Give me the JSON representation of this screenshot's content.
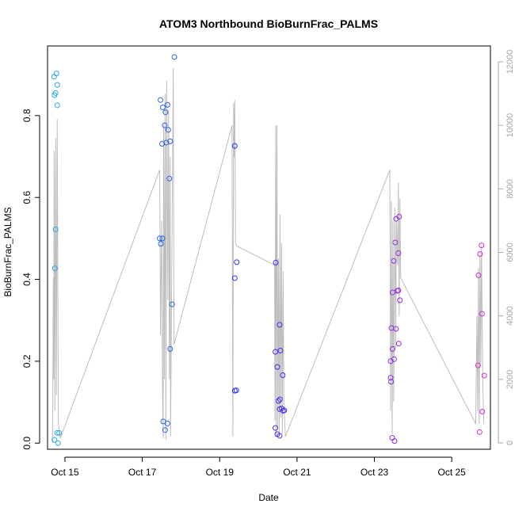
{
  "chart_data": {
    "type": "scatter",
    "title": "ATOM3 Northbound BioBurnFrac_PALMS",
    "xlabel": "Date",
    "ylabel": "BioBurnFrac_PALMS",
    "x_unit": "day of October 2017",
    "xlim": [
      14.55,
      26.0
    ],
    "ylim": [
      -0.015,
      0.97
    ],
    "y2lim": [
      -200,
      12500
    ],
    "x_ticks": [
      {
        "value": 15,
        "label": "Oct 15"
      },
      {
        "value": 17,
        "label": "Oct 17"
      },
      {
        "value": 19,
        "label": "Oct 19"
      },
      {
        "value": 21,
        "label": "Oct 21"
      },
      {
        "value": 23,
        "label": "Oct 23"
      },
      {
        "value": 25,
        "label": "Oct 25"
      }
    ],
    "y_ticks": [
      {
        "value": 0.0,
        "label": "0.0"
      },
      {
        "value": 0.2,
        "label": "0.2"
      },
      {
        "value": 0.4,
        "label": "0.4"
      },
      {
        "value": 0.6,
        "label": "0.6"
      },
      {
        "value": 0.8,
        "label": "0.8"
      }
    ],
    "y2_ticks": [
      {
        "value": 0,
        "label": "0"
      },
      {
        "value": 2000,
        "label": "2000"
      },
      {
        "value": 4000,
        "label": "4000"
      },
      {
        "value": 6000,
        "label": "6000"
      },
      {
        "value": 8000,
        "label": "8000"
      },
      {
        "value": 10000,
        "label": "10000"
      },
      {
        "value": 12000,
        "label": "12000"
      }
    ],
    "colors": {
      "altitude_line": "#bdbdbd",
      "axis": "#000000",
      "y2_axis": "#a6a6a6",
      "point_start": "#29a9e6",
      "point_mid": "#2a2ef0",
      "point_end": "#d62ad6"
    },
    "series": [
      {
        "role": "points",
        "points": [
          {
            "x": 14.72,
            "y": 0.895
          },
          {
            "x": 14.78,
            "y": 0.903
          },
          {
            "x": 14.76,
            "y": 0.855
          },
          {
            "x": 14.73,
            "y": 0.85
          },
          {
            "x": 14.8,
            "y": 0.875
          },
          {
            "x": 14.8,
            "y": 0.825
          },
          {
            "x": 14.76,
            "y": 0.522
          },
          {
            "x": 14.74,
            "y": 0.427
          },
          {
            "x": 14.8,
            "y": 0.025
          },
          {
            "x": 14.85,
            "y": 0.025
          },
          {
            "x": 14.73,
            "y": 0.008
          },
          {
            "x": 14.82,
            "y": 0.0
          },
          {
            "x": 17.47,
            "y": 0.838
          },
          {
            "x": 17.53,
            "y": 0.82
          },
          {
            "x": 17.65,
            "y": 0.826
          },
          {
            "x": 17.6,
            "y": 0.808
          },
          {
            "x": 17.58,
            "y": 0.776
          },
          {
            "x": 17.67,
            "y": 0.765
          },
          {
            "x": 17.72,
            "y": 0.737
          },
          {
            "x": 17.62,
            "y": 0.734
          },
          {
            "x": 17.51,
            "y": 0.731
          },
          {
            "x": 17.83,
            "y": 0.943
          },
          {
            "x": 17.7,
            "y": 0.646
          },
          {
            "x": 17.45,
            "y": 0.5
          },
          {
            "x": 17.52,
            "y": 0.5
          },
          {
            "x": 17.48,
            "y": 0.487
          },
          {
            "x": 17.77,
            "y": 0.339
          },
          {
            "x": 17.72,
            "y": 0.23
          },
          {
            "x": 17.54,
            "y": 0.053
          },
          {
            "x": 17.65,
            "y": 0.048
          },
          {
            "x": 17.59,
            "y": 0.032
          },
          {
            "x": 19.39,
            "y": 0.726
          },
          {
            "x": 19.44,
            "y": 0.442
          },
          {
            "x": 19.39,
            "y": 0.403
          },
          {
            "x": 19.39,
            "y": 0.128
          },
          {
            "x": 19.43,
            "y": 0.129
          },
          {
            "x": 20.45,
            "y": 0.441
          },
          {
            "x": 20.55,
            "y": 0.289
          },
          {
            "x": 20.44,
            "y": 0.223
          },
          {
            "x": 20.57,
            "y": 0.226
          },
          {
            "x": 20.49,
            "y": 0.186
          },
          {
            "x": 20.63,
            "y": 0.166
          },
          {
            "x": 20.52,
            "y": 0.103
          },
          {
            "x": 20.56,
            "y": 0.107
          },
          {
            "x": 20.55,
            "y": 0.083
          },
          {
            "x": 20.6,
            "y": 0.085
          },
          {
            "x": 20.64,
            "y": 0.079
          },
          {
            "x": 20.67,
            "y": 0.08
          },
          {
            "x": 20.44,
            "y": 0.037
          },
          {
            "x": 20.49,
            "y": 0.022
          },
          {
            "x": 20.55,
            "y": 0.018
          },
          {
            "x": 23.56,
            "y": 0.548
          },
          {
            "x": 23.64,
            "y": 0.553
          },
          {
            "x": 23.54,
            "y": 0.49
          },
          {
            "x": 23.62,
            "y": 0.464
          },
          {
            "x": 23.5,
            "y": 0.445
          },
          {
            "x": 23.62,
            "y": 0.373
          },
          {
            "x": 23.59,
            "y": 0.372
          },
          {
            "x": 23.47,
            "y": 0.368
          },
          {
            "x": 23.66,
            "y": 0.349
          },
          {
            "x": 23.44,
            "y": 0.281
          },
          {
            "x": 23.56,
            "y": 0.279
          },
          {
            "x": 23.63,
            "y": 0.243
          },
          {
            "x": 23.47,
            "y": 0.23
          },
          {
            "x": 23.51,
            "y": 0.205
          },
          {
            "x": 23.42,
            "y": 0.2
          },
          {
            "x": 23.42,
            "y": 0.16
          },
          {
            "x": 23.43,
            "y": 0.15
          },
          {
            "x": 23.46,
            "y": 0.013
          },
          {
            "x": 23.52,
            "y": 0.005
          },
          {
            "x": 25.77,
            "y": 0.483
          },
          {
            "x": 25.73,
            "y": 0.462
          },
          {
            "x": 25.69,
            "y": 0.41
          },
          {
            "x": 25.78,
            "y": 0.316
          },
          {
            "x": 25.68,
            "y": 0.19
          },
          {
            "x": 25.84,
            "y": 0.165
          },
          {
            "x": 25.79,
            "y": 0.077
          },
          {
            "x": 25.72,
            "y": 0.027
          }
        ]
      },
      {
        "role": "altitude_line",
        "points": [
          {
            "x": 14.68,
            "y": 0
          },
          {
            "x": 14.7,
            "y": 5200
          },
          {
            "x": 14.71,
            "y": 2000
          },
          {
            "x": 14.72,
            "y": 9200
          },
          {
            "x": 14.74,
            "y": 1000
          },
          {
            "x": 14.76,
            "y": 9600
          },
          {
            "x": 14.78,
            "y": 1500
          },
          {
            "x": 14.8,
            "y": 10200
          },
          {
            "x": 14.83,
            "y": 600
          },
          {
            "x": 14.88,
            "y": 150
          },
          {
            "x": 17.45,
            "y": 8600
          },
          {
            "x": 17.47,
            "y": 3400
          },
          {
            "x": 17.5,
            "y": 7000
          },
          {
            "x": 17.52,
            "y": 2000
          },
          {
            "x": 17.54,
            "y": 150
          },
          {
            "x": 17.55,
            "y": 10000
          },
          {
            "x": 17.57,
            "y": 2000
          },
          {
            "x": 17.59,
            "y": 11000
          },
          {
            "x": 17.61,
            "y": 100
          },
          {
            "x": 17.63,
            "y": 11400
          },
          {
            "x": 17.66,
            "y": 4500
          },
          {
            "x": 17.68,
            "y": 10500
          },
          {
            "x": 17.7,
            "y": 2000
          },
          {
            "x": 17.72,
            "y": 9000
          },
          {
            "x": 17.73,
            "y": 200
          },
          {
            "x": 17.75,
            "y": 3500
          },
          {
            "x": 17.8,
            "y": 11800
          },
          {
            "x": 17.82,
            "y": 3100
          },
          {
            "x": 19.32,
            "y": 10000
          },
          {
            "x": 19.34,
            "y": 200
          },
          {
            "x": 19.36,
            "y": 10700
          },
          {
            "x": 19.38,
            "y": 9000
          },
          {
            "x": 19.39,
            "y": 10800
          },
          {
            "x": 19.41,
            "y": 6300
          },
          {
            "x": 19.44,
            "y": 6200
          },
          {
            "x": 20.42,
            "y": 5600
          },
          {
            "x": 20.43,
            "y": 700
          },
          {
            "x": 20.45,
            "y": 10000
          },
          {
            "x": 20.46,
            "y": 200
          },
          {
            "x": 20.48,
            "y": 10000
          },
          {
            "x": 20.5,
            "y": 500
          },
          {
            "x": 20.52,
            "y": 5800
          },
          {
            "x": 20.54,
            "y": 200
          },
          {
            "x": 20.56,
            "y": 7200
          },
          {
            "x": 20.58,
            "y": 800
          },
          {
            "x": 20.6,
            "y": 6300
          },
          {
            "x": 20.62,
            "y": 300
          },
          {
            "x": 20.64,
            "y": 5400
          },
          {
            "x": 20.66,
            "y": 1200
          },
          {
            "x": 20.7,
            "y": 200
          },
          {
            "x": 23.4,
            "y": 8600
          },
          {
            "x": 23.42,
            "y": 1000
          },
          {
            "x": 23.44,
            "y": 7600
          },
          {
            "x": 23.46,
            "y": 300
          },
          {
            "x": 23.48,
            "y": 7000
          },
          {
            "x": 23.5,
            "y": 1300
          },
          {
            "x": 23.53,
            "y": 7400
          },
          {
            "x": 23.55,
            "y": 3000
          },
          {
            "x": 23.57,
            "y": 7000
          },
          {
            "x": 23.6,
            "y": 5600
          },
          {
            "x": 23.62,
            "y": 8200
          },
          {
            "x": 23.64,
            "y": 4000
          },
          {
            "x": 23.66,
            "y": 7700
          },
          {
            "x": 23.68,
            "y": 5200
          },
          {
            "x": 25.62,
            "y": 600
          },
          {
            "x": 25.65,
            "y": 4000
          },
          {
            "x": 25.67,
            "y": 1000
          },
          {
            "x": 25.69,
            "y": 5500
          },
          {
            "x": 25.71,
            "y": 600
          },
          {
            "x": 25.73,
            "y": 6000
          },
          {
            "x": 25.75,
            "y": 2500
          },
          {
            "x": 25.77,
            "y": 6200
          },
          {
            "x": 25.8,
            "y": 2000
          },
          {
            "x": 25.83,
            "y": 600
          }
        ]
      }
    ]
  }
}
